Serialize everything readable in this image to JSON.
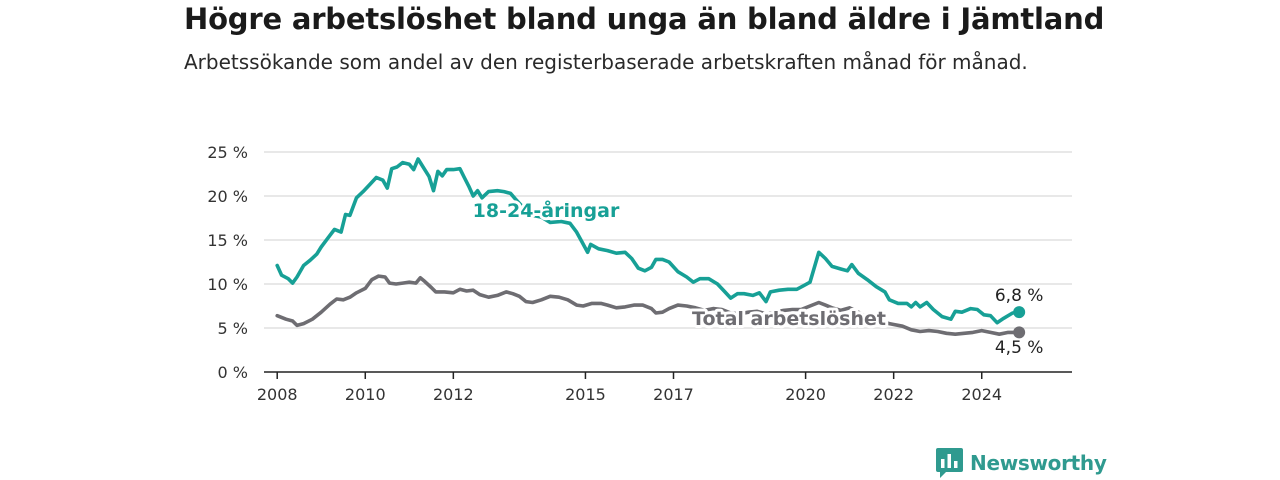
{
  "header": {
    "title": "Högre arbetslöshet bland unga än bland äldre i Jämtland",
    "subtitle": "Arbetssökande som andel av den registerbaserade arbetskraften månad för månad."
  },
  "brand": {
    "name": "Newsworthy",
    "icon": "bar-chart-speech-bubble-icon",
    "color": "#2f9a8f"
  },
  "chart_data": {
    "type": "line",
    "x_tick_labels": [
      "2008",
      "2010",
      "2012",
      "2015",
      "2017",
      "2020",
      "2022",
      "2024"
    ],
    "y_tick_labels": [
      "0 %",
      "5 %",
      "10 %",
      "15 %",
      "20 %",
      "25 %"
    ],
    "ylim": [
      0,
      25
    ],
    "xlim": [
      2007.7,
      2026.05
    ],
    "grid": true,
    "series": [
      {
        "name": "18-24-åringar",
        "color": "#17a096",
        "end_label": "6,8 %",
        "points": [
          [
            2008.0,
            12.1
          ],
          [
            2008.1,
            11.0
          ],
          [
            2008.25,
            10.6
          ],
          [
            2008.35,
            10.1
          ],
          [
            2008.45,
            10.8
          ],
          [
            2008.6,
            12.1
          ],
          [
            2008.75,
            12.7
          ],
          [
            2008.9,
            13.4
          ],
          [
            2009.0,
            14.2
          ],
          [
            2009.15,
            15.2
          ],
          [
            2009.3,
            16.2
          ],
          [
            2009.45,
            15.9
          ],
          [
            2009.55,
            17.9
          ],
          [
            2009.65,
            17.8
          ],
          [
            2009.8,
            19.8
          ],
          [
            2009.95,
            20.5
          ],
          [
            2010.1,
            21.3
          ],
          [
            2010.25,
            22.1
          ],
          [
            2010.4,
            21.8
          ],
          [
            2010.5,
            20.9
          ],
          [
            2010.6,
            23.1
          ],
          [
            2010.72,
            23.3
          ],
          [
            2010.85,
            23.8
          ],
          [
            2011.0,
            23.6
          ],
          [
            2011.1,
            23.0
          ],
          [
            2011.2,
            24.2
          ],
          [
            2011.35,
            23.0
          ],
          [
            2011.45,
            22.2
          ],
          [
            2011.55,
            20.6
          ],
          [
            2011.65,
            22.8
          ],
          [
            2011.75,
            22.3
          ],
          [
            2011.85,
            23.0
          ],
          [
            2012.0,
            23.0
          ],
          [
            2012.15,
            23.1
          ],
          [
            2012.25,
            22.1
          ],
          [
            2012.35,
            21.1
          ],
          [
            2012.45,
            20.0
          ],
          [
            2012.55,
            20.6
          ],
          [
            2012.65,
            19.8
          ],
          [
            2012.8,
            20.5
          ],
          [
            2013.0,
            20.6
          ],
          [
            2013.15,
            20.5
          ],
          [
            2013.3,
            20.3
          ],
          [
            2013.4,
            19.7
          ],
          [
            2013.55,
            18.9
          ],
          [
            2013.7,
            17.9
          ],
          [
            2014.0,
            17.6
          ],
          [
            2014.2,
            17.0
          ],
          [
            2014.45,
            17.1
          ],
          [
            2014.65,
            16.9
          ],
          [
            2014.8,
            15.9
          ],
          [
            2014.92,
            14.8
          ],
          [
            2015.05,
            13.6
          ],
          [
            2015.12,
            14.5
          ],
          [
            2015.3,
            14.0
          ],
          [
            2015.5,
            13.8
          ],
          [
            2015.7,
            13.5
          ],
          [
            2015.9,
            13.6
          ],
          [
            2016.05,
            12.9
          ],
          [
            2016.2,
            11.8
          ],
          [
            2016.35,
            11.5
          ],
          [
            2016.5,
            11.9
          ],
          [
            2016.6,
            12.8
          ],
          [
            2016.75,
            12.8
          ],
          [
            2016.9,
            12.5
          ],
          [
            2017.1,
            11.4
          ],
          [
            2017.3,
            10.8
          ],
          [
            2017.45,
            10.2
          ],
          [
            2017.6,
            10.6
          ],
          [
            2017.8,
            10.6
          ],
          [
            2018.0,
            10.0
          ],
          [
            2018.15,
            9.2
          ],
          [
            2018.3,
            8.4
          ],
          [
            2018.45,
            8.9
          ],
          [
            2018.6,
            8.9
          ],
          [
            2018.8,
            8.7
          ],
          [
            2018.95,
            9.0
          ],
          [
            2019.1,
            8.0
          ],
          [
            2019.2,
            9.1
          ],
          [
            2019.4,
            9.3
          ],
          [
            2019.6,
            9.4
          ],
          [
            2019.8,
            9.4
          ],
          [
            2019.95,
            9.8
          ],
          [
            2020.1,
            10.2
          ],
          [
            2020.3,
            13.6
          ],
          [
            2020.45,
            12.9
          ],
          [
            2020.6,
            12.0
          ],
          [
            2020.8,
            11.7
          ],
          [
            2020.95,
            11.5
          ],
          [
            2021.05,
            12.2
          ],
          [
            2021.2,
            11.2
          ],
          [
            2021.4,
            10.5
          ],
          [
            2021.6,
            9.7
          ],
          [
            2021.8,
            9.1
          ],
          [
            2021.9,
            8.2
          ],
          [
            2022.1,
            7.8
          ],
          [
            2022.3,
            7.8
          ],
          [
            2022.4,
            7.4
          ],
          [
            2022.5,
            7.9
          ],
          [
            2022.6,
            7.4
          ],
          [
            2022.75,
            7.9
          ],
          [
            2022.9,
            7.1
          ],
          [
            2023.1,
            6.3
          ],
          [
            2023.3,
            6.0
          ],
          [
            2023.4,
            6.9
          ],
          [
            2023.55,
            6.8
          ],
          [
            2023.75,
            7.2
          ],
          [
            2023.9,
            7.1
          ],
          [
            2024.05,
            6.5
          ],
          [
            2024.2,
            6.4
          ],
          [
            2024.35,
            5.6
          ],
          [
            2024.5,
            6.1
          ],
          [
            2024.7,
            6.7
          ],
          [
            2024.85,
            6.8
          ]
        ]
      },
      {
        "name": "Total arbetslöshet",
        "color": "#6e6d72",
        "end_label": "4,5 %",
        "points": [
          [
            2008.0,
            6.4
          ],
          [
            2008.2,
            6.0
          ],
          [
            2008.35,
            5.8
          ],
          [
            2008.45,
            5.3
          ],
          [
            2008.6,
            5.5
          ],
          [
            2008.8,
            6.0
          ],
          [
            2009.0,
            6.8
          ],
          [
            2009.2,
            7.7
          ],
          [
            2009.35,
            8.3
          ],
          [
            2009.5,
            8.2
          ],
          [
            2009.65,
            8.5
          ],
          [
            2009.8,
            9.0
          ],
          [
            2010.0,
            9.5
          ],
          [
            2010.15,
            10.5
          ],
          [
            2010.3,
            10.9
          ],
          [
            2010.45,
            10.8
          ],
          [
            2010.55,
            10.1
          ],
          [
            2010.7,
            10.0
          ],
          [
            2010.85,
            10.1
          ],
          [
            2011.0,
            10.2
          ],
          [
            2011.15,
            10.1
          ],
          [
            2011.25,
            10.7
          ],
          [
            2011.35,
            10.3
          ],
          [
            2011.5,
            9.6
          ],
          [
            2011.6,
            9.1
          ],
          [
            2011.8,
            9.1
          ],
          [
            2012.0,
            9.0
          ],
          [
            2012.15,
            9.4
          ],
          [
            2012.3,
            9.2
          ],
          [
            2012.45,
            9.3
          ],
          [
            2012.6,
            8.8
          ],
          [
            2012.8,
            8.5
          ],
          [
            2013.0,
            8.7
          ],
          [
            2013.2,
            9.1
          ],
          [
            2013.35,
            8.9
          ],
          [
            2013.5,
            8.6
          ],
          [
            2013.65,
            8.0
          ],
          [
            2013.8,
            7.9
          ],
          [
            2014.0,
            8.2
          ],
          [
            2014.2,
            8.6
          ],
          [
            2014.4,
            8.5
          ],
          [
            2014.6,
            8.2
          ],
          [
            2014.8,
            7.6
          ],
          [
            2014.95,
            7.5
          ],
          [
            2015.15,
            7.8
          ],
          [
            2015.35,
            7.8
          ],
          [
            2015.5,
            7.6
          ],
          [
            2015.7,
            7.3
          ],
          [
            2015.9,
            7.4
          ],
          [
            2016.1,
            7.6
          ],
          [
            2016.3,
            7.6
          ],
          [
            2016.5,
            7.2
          ],
          [
            2016.6,
            6.7
          ],
          [
            2016.75,
            6.8
          ],
          [
            2016.9,
            7.2
          ],
          [
            2017.1,
            7.6
          ],
          [
            2017.3,
            7.5
          ],
          [
            2017.5,
            7.3
          ],
          [
            2017.7,
            7.0
          ],
          [
            2017.9,
            7.2
          ],
          [
            2018.1,
            7.1
          ],
          [
            2018.3,
            6.7
          ],
          [
            2018.5,
            6.6
          ],
          [
            2018.7,
            6.8
          ],
          [
            2018.9,
            6.9
          ],
          [
            2019.1,
            6.6
          ],
          [
            2019.3,
            6.8
          ],
          [
            2019.5,
            7.0
          ],
          [
            2019.7,
            7.1
          ],
          [
            2019.9,
            7.1
          ],
          [
            2020.1,
            7.5
          ],
          [
            2020.3,
            7.9
          ],
          [
            2020.45,
            7.6
          ],
          [
            2020.6,
            7.3
          ],
          [
            2020.8,
            7.0
          ],
          [
            2021.0,
            7.3
          ],
          [
            2021.2,
            6.8
          ],
          [
            2021.4,
            6.2
          ],
          [
            2021.6,
            5.8
          ],
          [
            2021.8,
            5.6
          ],
          [
            2022.0,
            5.4
          ],
          [
            2022.2,
            5.2
          ],
          [
            2022.4,
            4.8
          ],
          [
            2022.6,
            4.6
          ],
          [
            2022.8,
            4.7
          ],
          [
            2023.0,
            4.6
          ],
          [
            2023.2,
            4.4
          ],
          [
            2023.4,
            4.3
          ],
          [
            2023.6,
            4.4
          ],
          [
            2023.8,
            4.5
          ],
          [
            2024.0,
            4.7
          ],
          [
            2024.2,
            4.5
          ],
          [
            2024.4,
            4.3
          ],
          [
            2024.6,
            4.5
          ],
          [
            2024.85,
            4.5
          ]
        ]
      }
    ]
  }
}
